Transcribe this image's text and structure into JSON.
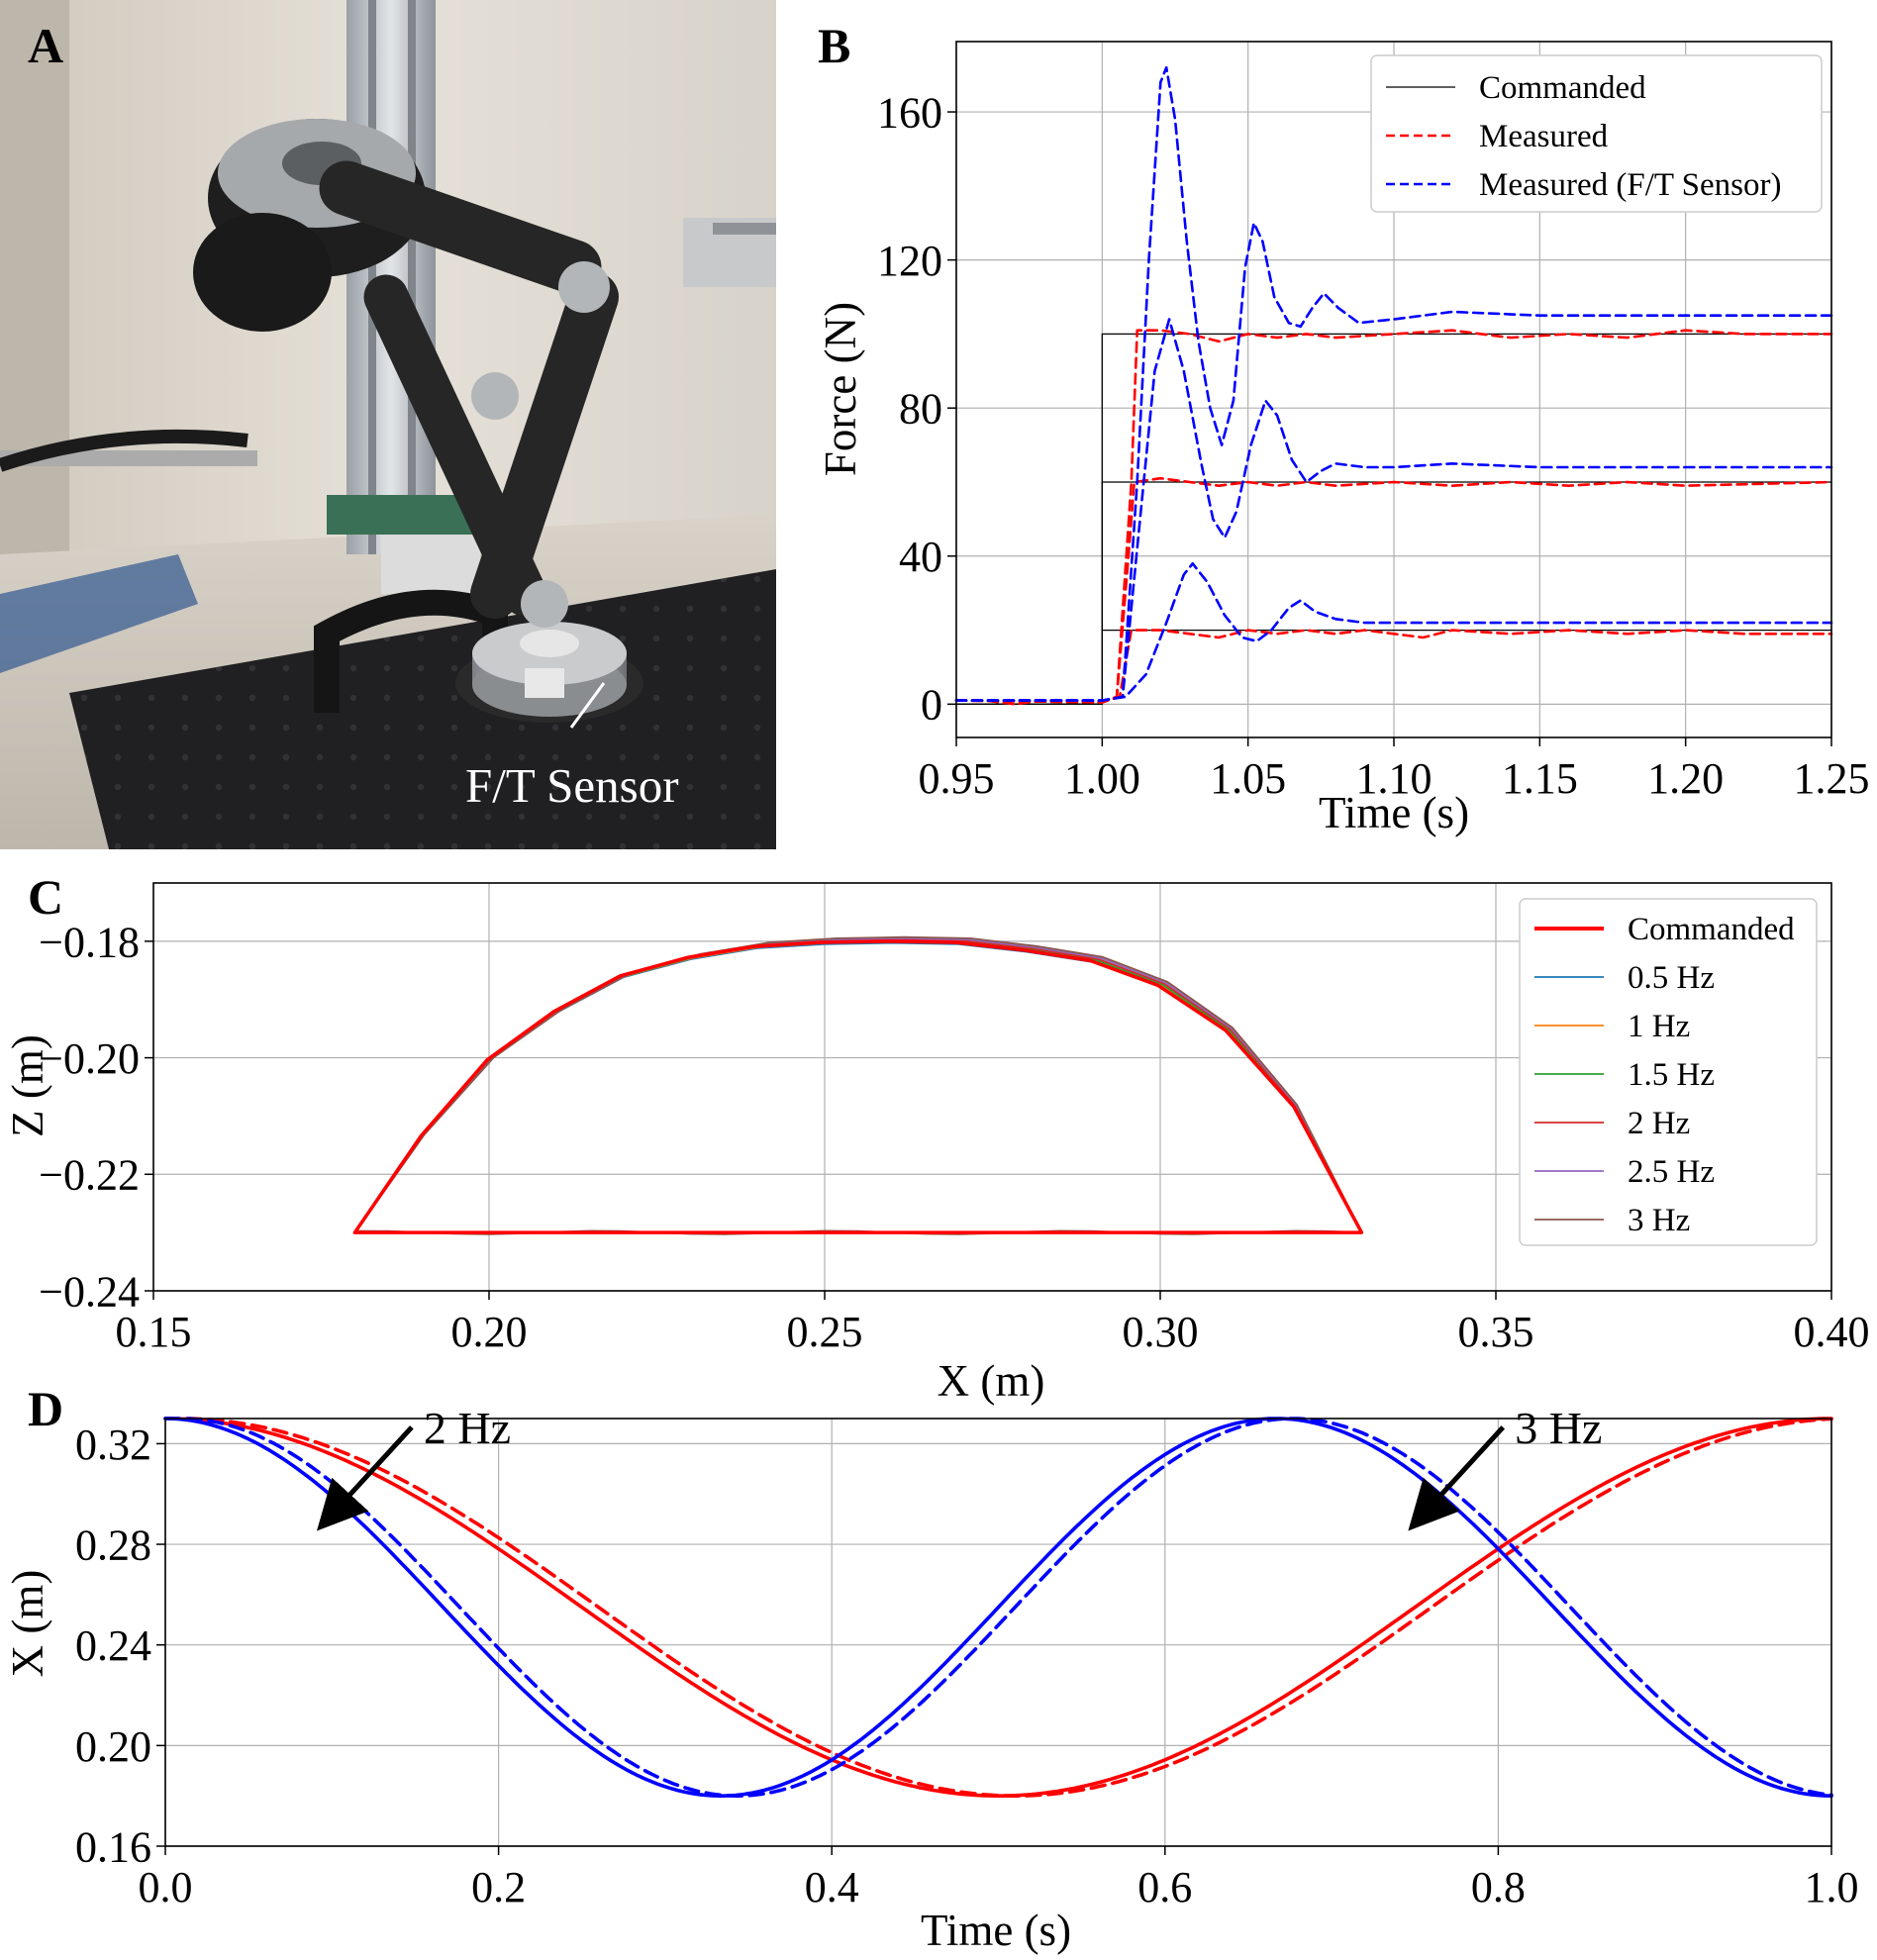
{
  "panel_labels": {
    "a": "A",
    "b": "B",
    "c": "C",
    "d": "D"
  },
  "panel_a": {
    "photo_label": "F/T Sensor"
  },
  "chart_data": [
    {
      "id": "B",
      "type": "line",
      "xlabel": "Time (s)",
      "ylabel": "Force (N)",
      "xlim": [
        0.95,
        1.25
      ],
      "ylim": [
        -9,
        179
      ],
      "xticks": [
        0.95,
        1.0,
        1.05,
        1.1,
        1.15,
        1.2,
        1.25
      ],
      "xtick_labels": [
        "0.95",
        "1.00",
        "1.05",
        "1.10",
        "1.15",
        "1.20",
        "1.25"
      ],
      "yticks": [
        0,
        40,
        80,
        120,
        160
      ],
      "ytick_labels": [
        "0",
        "40",
        "80",
        "120",
        "160"
      ],
      "grid": true,
      "legend_position": "top-right",
      "legend": [
        {
          "label": "Commanded",
          "color": "#000000",
          "style": "solid"
        },
        {
          "label": "Measured",
          "color": "#ff0000",
          "style": "dashed"
        },
        {
          "label": "Measured (F/T Sensor)",
          "color": "#0000ff",
          "style": "dashed"
        }
      ],
      "series": [
        {
          "group": "Commanded",
          "color": "#000000",
          "dash": false,
          "points": [
            [
              0.95,
              0
            ],
            [
              1.0,
              0
            ],
            [
              1.0,
              20
            ],
            [
              1.25,
              20
            ]
          ]
        },
        {
          "group": "Commanded",
          "color": "#000000",
          "dash": false,
          "points": [
            [
              0.95,
              0
            ],
            [
              1.0,
              0
            ],
            [
              1.0,
              60
            ],
            [
              1.25,
              60
            ]
          ]
        },
        {
          "group": "Commanded",
          "color": "#000000",
          "dash": false,
          "points": [
            [
              0.95,
              0
            ],
            [
              1.0,
              0
            ],
            [
              1.0,
              100
            ],
            [
              1.25,
              100
            ]
          ]
        },
        {
          "group": "Measured",
          "color": "#ff0000",
          "dash": true,
          "points": [
            [
              0.95,
              1
            ],
            [
              0.96,
              1
            ],
            [
              0.97,
              0
            ],
            [
              0.98,
              1
            ],
            [
              0.99,
              1
            ],
            [
              1.0,
              0.5
            ],
            [
              1.006,
              2
            ],
            [
              1.01,
              20
            ],
            [
              1.02,
              20
            ],
            [
              1.03,
              19
            ],
            [
              1.04,
              18
            ],
            [
              1.05,
              20
            ],
            [
              1.06,
              19
            ],
            [
              1.07,
              20
            ],
            [
              1.08,
              19
            ],
            [
              1.09,
              20
            ],
            [
              1.1,
              19
            ],
            [
              1.11,
              18
            ],
            [
              1.12,
              20
            ],
            [
              1.14,
              19
            ],
            [
              1.16,
              20
            ],
            [
              1.18,
              19
            ],
            [
              1.2,
              20
            ],
            [
              1.22,
              19
            ],
            [
              1.25,
              19
            ]
          ]
        },
        {
          "group": "Measured",
          "color": "#ff0000",
          "dash": true,
          "points": [
            [
              0.95,
              1
            ],
            [
              1.0,
              0.5
            ],
            [
              1.005,
              2
            ],
            [
              1.009,
              40
            ],
            [
              1.011,
              60
            ],
            [
              1.02,
              61
            ],
            [
              1.03,
              60
            ],
            [
              1.04,
              59
            ],
            [
              1.05,
              60
            ],
            [
              1.06,
              59
            ],
            [
              1.07,
              60
            ],
            [
              1.08,
              59
            ],
            [
              1.1,
              60
            ],
            [
              1.12,
              59
            ],
            [
              1.14,
              60
            ],
            [
              1.16,
              59
            ],
            [
              1.18,
              60
            ],
            [
              1.2,
              59
            ],
            [
              1.25,
              60
            ]
          ]
        },
        {
          "group": "Measured",
          "color": "#ff0000",
          "dash": true,
          "points": [
            [
              0.95,
              1
            ],
            [
              1.0,
              0.5
            ],
            [
              1.005,
              2
            ],
            [
              1.01,
              60
            ],
            [
              1.012,
              101
            ],
            [
              1.02,
              101
            ],
            [
              1.03,
              100
            ],
            [
              1.04,
              98
            ],
            [
              1.05,
              100
            ],
            [
              1.06,
              99
            ],
            [
              1.07,
              100
            ],
            [
              1.08,
              99
            ],
            [
              1.1,
              100
            ],
            [
              1.12,
              101
            ],
            [
              1.14,
              99
            ],
            [
              1.16,
              100
            ],
            [
              1.18,
              99
            ],
            [
              1.2,
              101
            ],
            [
              1.22,
              100
            ],
            [
              1.25,
              100
            ]
          ]
        },
        {
          "group": "Measured (F/T Sensor)",
          "color": "#0000ff",
          "dash": true,
          "points": [
            [
              0.95,
              1
            ],
            [
              1.0,
              1
            ],
            [
              1.008,
              2
            ],
            [
              1.015,
              8
            ],
            [
              1.022,
              22
            ],
            [
              1.028,
              35
            ],
            [
              1.031,
              38
            ],
            [
              1.036,
              33
            ],
            [
              1.042,
              24
            ],
            [
              1.048,
              18
            ],
            [
              1.053,
              17
            ],
            [
              1.058,
              20
            ],
            [
              1.064,
              26
            ],
            [
              1.068,
              28
            ],
            [
              1.073,
              25
            ],
            [
              1.08,
              23
            ],
            [
              1.09,
              22
            ],
            [
              1.1,
              22
            ],
            [
              1.15,
              22
            ],
            [
              1.2,
              22
            ],
            [
              1.25,
              22
            ]
          ]
        },
        {
          "group": "Measured (F/T Sensor)",
          "color": "#0000ff",
          "dash": true,
          "points": [
            [
              0.95,
              1
            ],
            [
              1.0,
              1
            ],
            [
              1.007,
              2
            ],
            [
              1.013,
              50
            ],
            [
              1.018,
              90
            ],
            [
              1.023,
              104
            ],
            [
              1.028,
              90
            ],
            [
              1.034,
              65
            ],
            [
              1.038,
              50
            ],
            [
              1.042,
              45
            ],
            [
              1.046,
              52
            ],
            [
              1.051,
              70
            ],
            [
              1.056,
              82
            ],
            [
              1.06,
              78
            ],
            [
              1.065,
              66
            ],
            [
              1.07,
              60
            ],
            [
              1.075,
              63
            ],
            [
              1.08,
              65
            ],
            [
              1.09,
              64
            ],
            [
              1.1,
              64
            ],
            [
              1.12,
              65
            ],
            [
              1.15,
              64
            ],
            [
              1.2,
              64
            ],
            [
              1.25,
              64
            ]
          ]
        },
        {
          "group": "Measured (F/T Sensor)",
          "color": "#0000ff",
          "dash": true,
          "points": [
            [
              0.95,
              1
            ],
            [
              1.0,
              1
            ],
            [
              1.007,
              2
            ],
            [
              1.012,
              60
            ],
            [
              1.016,
              120
            ],
            [
              1.02,
              168
            ],
            [
              1.022,
              172
            ],
            [
              1.025,
              158
            ],
            [
              1.029,
              125
            ],
            [
              1.033,
              98
            ],
            [
              1.037,
              80
            ],
            [
              1.041,
              70
            ],
            [
              1.045,
              82
            ],
            [
              1.049,
              118
            ],
            [
              1.052,
              130
            ],
            [
              1.055,
              125
            ],
            [
              1.059,
              110
            ],
            [
              1.064,
              103
            ],
            [
              1.068,
              102
            ],
            [
              1.072,
              107
            ],
            [
              1.076,
              111
            ],
            [
              1.081,
              107
            ],
            [
              1.088,
              103
            ],
            [
              1.1,
              104
            ],
            [
              1.12,
              106
            ],
            [
              1.15,
              105
            ],
            [
              1.18,
              105
            ],
            [
              1.2,
              105
            ],
            [
              1.25,
              105
            ]
          ]
        }
      ]
    },
    {
      "id": "C",
      "type": "line",
      "xlabel": "X (m)",
      "ylabel": "Z (m)",
      "xlim": [
        0.15,
        0.4
      ],
      "ylim": [
        -0.24,
        -0.17
      ],
      "xticks": [
        0.15,
        0.2,
        0.25,
        0.3,
        0.35,
        0.4
      ],
      "xtick_labels": [
        "0.15",
        "0.20",
        "0.25",
        "0.30",
        "0.35",
        "0.40"
      ],
      "yticks": [
        -0.18,
        -0.2,
        -0.22,
        -0.24
      ],
      "ytick_labels": [
        "−0.18",
        "−0.20",
        "−0.22",
        "−0.24"
      ],
      "grid": true,
      "legend_position": "top-right",
      "legend": [
        {
          "label": "Commanded",
          "color": "#ff0000",
          "width": 4
        },
        {
          "label": "0.5 Hz",
          "color": "#1f77b4",
          "width": 1.8
        },
        {
          "label": "1 Hz",
          "color": "#ff7f0e",
          "width": 1.8
        },
        {
          "label": "1.5 Hz",
          "color": "#2ca02c",
          "width": 1.8
        },
        {
          "label": "2 Hz",
          "color": "#d62728",
          "width": 1.8
        },
        {
          "label": "2.5 Hz",
          "color": "#9467bd",
          "width": 1.8
        },
        {
          "label": "3 Hz",
          "color": "#8c564b",
          "width": 1.8
        }
      ],
      "series": [
        {
          "name": "0.5 Hz",
          "color": "#1f77b4",
          "width": 1.8,
          "dz": 0.0,
          "shift": 0.0,
          "base": 0.0
        },
        {
          "name": "1 Hz",
          "color": "#ff7f0e",
          "width": 1.8,
          "dz": 0.0002,
          "shift": 0.0002,
          "base": 0.0
        },
        {
          "name": "1.5 Hz",
          "color": "#2ca02c",
          "width": 1.8,
          "dz": 0.0004,
          "shift": 0.0006,
          "base": 0.0
        },
        {
          "name": "2 Hz",
          "color": "#d62728",
          "width": 1.8,
          "dz": 0.0006,
          "shift": 0.001,
          "base": 0.0001
        },
        {
          "name": "2.5 Hz",
          "color": "#9467bd",
          "width": 1.8,
          "dz": 0.0008,
          "shift": 0.0014,
          "base": 0.0002
        },
        {
          "name": "3 Hz",
          "color": "#8c564b",
          "width": 1.8,
          "dz": 0.001,
          "shift": 0.0018,
          "base": 0.0003
        },
        {
          "name": "Commanded",
          "color": "#ff0000",
          "width": 3.5,
          "dz": 0.0003,
          "shift": -0.0006,
          "base": 0.0
        }
      ],
      "trajectory": {
        "x_min": 0.18,
        "x_max": 0.33,
        "z_bottom": -0.23,
        "z_top": -0.1802,
        "rise_points": [
          [
            0.18,
            -0.23
          ],
          [
            0.19,
            -0.2135
          ],
          [
            0.2,
            -0.2005
          ],
          [
            0.21,
            -0.1923
          ],
          [
            0.22,
            -0.1862
          ],
          [
            0.23,
            -0.1831
          ],
          [
            0.24,
            -0.1812
          ],
          [
            0.25,
            -0.1805
          ],
          [
            0.26,
            -0.1803
          ],
          [
            0.27,
            -0.1805
          ],
          [
            0.28,
            -0.1818
          ],
          [
            0.29,
            -0.1836
          ],
          [
            0.3,
            -0.1878
          ],
          [
            0.31,
            -0.1955
          ],
          [
            0.32,
            -0.2085
          ],
          [
            0.33,
            -0.23
          ]
        ]
      }
    },
    {
      "id": "D",
      "type": "line",
      "xlabel": "Time (s)",
      "ylabel": "X (m)",
      "xlim": [
        0.0,
        1.0
      ],
      "ylim": [
        0.16,
        0.33
      ],
      "xticks": [
        0.0,
        0.2,
        0.4,
        0.6,
        0.8,
        1.0
      ],
      "xtick_labels": [
        "0.0",
        "0.2",
        "0.4",
        "0.6",
        "0.8",
        "1.0"
      ],
      "yticks": [
        0.16,
        0.2,
        0.24,
        0.28,
        0.32
      ],
      "ytick_labels": [
        "0.16",
        "0.20",
        "0.24",
        "0.28",
        "0.32"
      ],
      "grid": true,
      "series": [
        {
          "freq": 2,
          "color": "#ff0000",
          "dash": false,
          "delay": 0.0,
          "x_max": 0.33,
          "x_min": 0.18
        },
        {
          "freq": 2,
          "color": "#ff0000",
          "dash": true,
          "delay": 0.01,
          "x_max": 0.33,
          "x_min": 0.18
        },
        {
          "freq": 3,
          "color": "#0000ff",
          "dash": false,
          "delay": 0.0,
          "x_max": 0.33,
          "x_min": 0.18
        },
        {
          "freq": 3,
          "color": "#0000ff",
          "dash": true,
          "delay": 0.01,
          "x_max": 0.33,
          "x_min": 0.18
        }
      ],
      "annotations": [
        {
          "text": "2 Hz",
          "text_xy": [
            0.155,
            0.321
          ],
          "arrow_to": [
            0.093,
            0.288
          ]
        },
        {
          "text": "3 Hz",
          "text_xy": [
            0.81,
            0.321
          ],
          "arrow_to": [
            0.748,
            0.288
          ]
        }
      ]
    }
  ]
}
